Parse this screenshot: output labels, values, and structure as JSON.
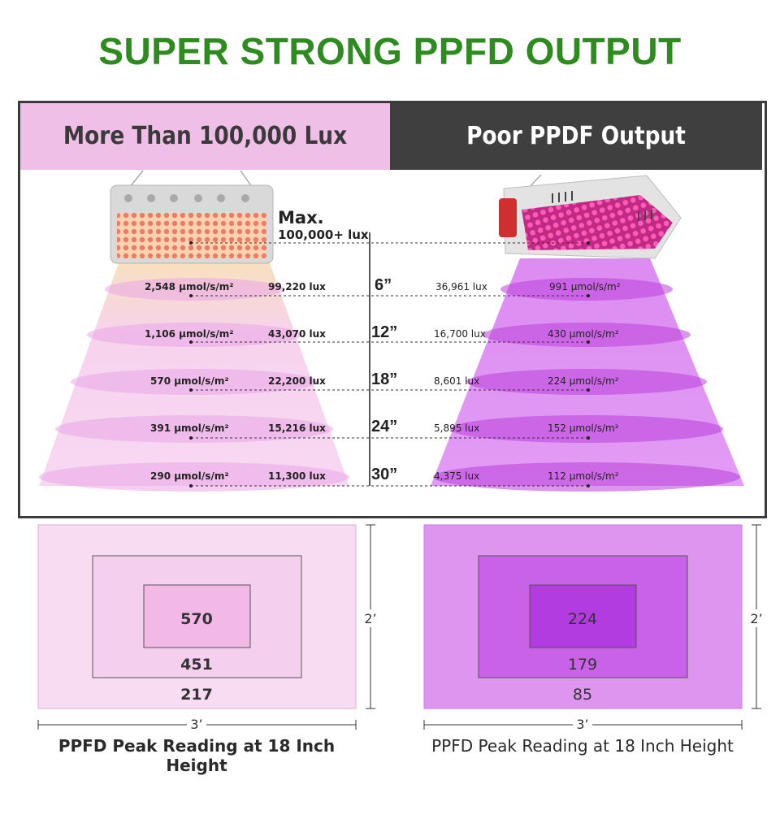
{
  "title": "SUPER STRONG PPFD OUTPUT",
  "header": {
    "left": "More Than 100,000 Lux",
    "right": "Poor PPDF Output"
  },
  "max_label": {
    "line1": "Max.",
    "line2": "100,000+ lux"
  },
  "rows": [
    {
      "height": "6”",
      "left_ppfd": "2,548 µmol/s/m²",
      "left_lux": "99,220 lux",
      "right_lux": "36,961 lux",
      "right_ppfd": "991 µmol/s/m²"
    },
    {
      "height": "12”",
      "left_ppfd": "1,106 µmol/s/m²",
      "left_lux": "43,070 lux",
      "right_lux": "16,700 lux",
      "right_ppfd": "430 µmol/s/m²"
    },
    {
      "height": "18”",
      "left_ppfd": "570 µmol/s/m²",
      "left_lux": "22,200 lux",
      "right_lux": "8,601 lux",
      "right_ppfd": "224 µmol/s/m²"
    },
    {
      "height": "24”",
      "left_ppfd": "391 µmol/s/m²",
      "left_lux": "15,216 lux",
      "right_lux": "5,895 lux",
      "right_ppfd": "152 µmol/s/m²"
    },
    {
      "height": "30”",
      "left_ppfd": "290 µmol/s/m²",
      "left_lux": "11,300 lux",
      "right_lux": "4,375 lux",
      "right_ppfd": "112 µmol/s/m²"
    }
  ],
  "panels": {
    "left": {
      "inner": "570",
      "middle": "451",
      "outer": "217",
      "width_label": "3’",
      "height_label": "2’",
      "caption": "PPFD Peak Reading at 18 Inch Height"
    },
    "right": {
      "inner": "224",
      "middle": "179",
      "outer": "85",
      "width_label": "3’",
      "height_label": "2’",
      "caption": "PPFD Peak Reading at 18 Inch Height"
    }
  },
  "colors": {
    "title_green": "#2e8b1f",
    "left_header_pink": "#f0bfe8",
    "right_header_dark": "#3f3f3f",
    "left_light_pink": "#f6d3ef",
    "right_purple": "#c860e8"
  }
}
